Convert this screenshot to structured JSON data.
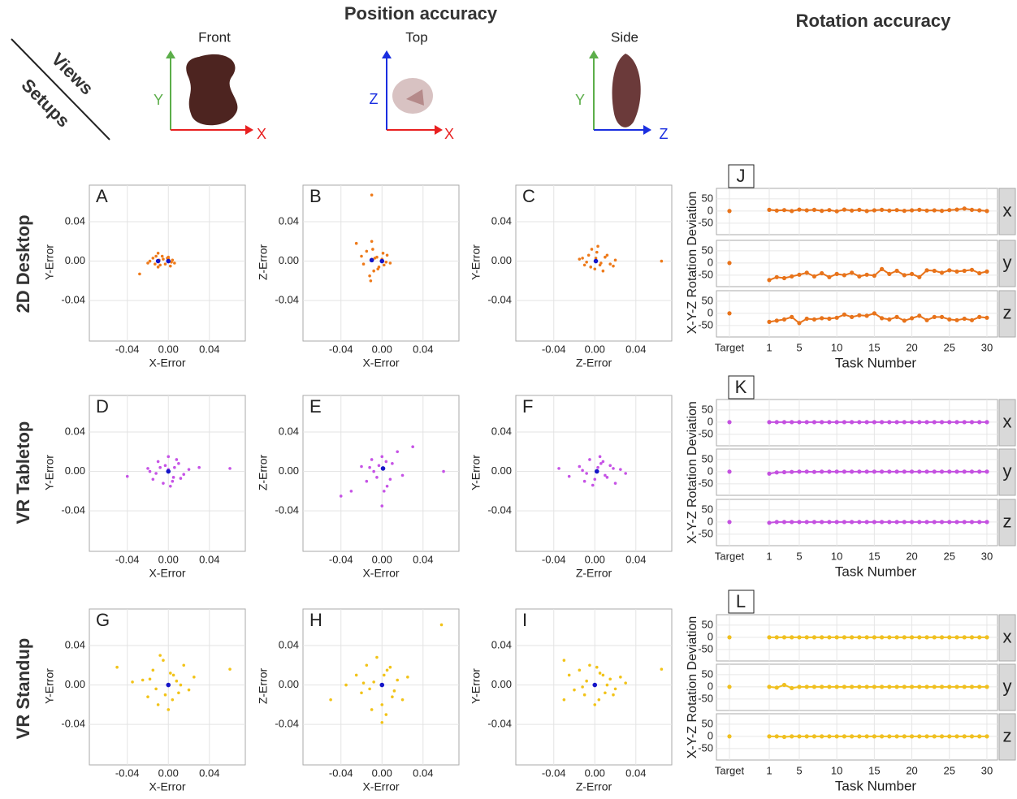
{
  "header": {
    "position_title": "Position accuracy",
    "rotation_title": "Rotation accuracy",
    "views": "Views",
    "setups": "Setups",
    "view_names": [
      "Front",
      "Top",
      "Side"
    ],
    "view_axes": [
      [
        "Y",
        "X"
      ],
      [
        "Z",
        "X"
      ],
      [
        "Y",
        "Z"
      ]
    ],
    "rows": [
      "2D Desktop",
      "VR Tabletop",
      "VR Standup"
    ]
  },
  "chart_data": [
    {
      "type": "scatter",
      "panel": "A",
      "xlabel": "X-Error",
      "ylabel": "Y-Error",
      "color": "#ee7a1a",
      "marker_color": "#1515c8",
      "xlim": [
        -0.077,
        0.075
      ],
      "ylim": [
        -0.081,
        0.077
      ],
      "xticks": [
        -0.04,
        {
          "value": 0,
          "label": "0.00"
        },
        0.04
      ],
      "yticks": [
        -0.04,
        {
          "value": 0,
          "label": "0.00"
        },
        0.04
      ],
      "x": [
        -0.028,
        -0.02,
        -0.015,
        -0.012,
        -0.01,
        -0.008,
        -0.005,
        -0.003,
        0,
        0.002,
        0.004,
        0.006,
        -0.018,
        -0.01,
        -0.006,
        0,
        0.003,
        -0.013,
        -0.009,
        -0.001
      ],
      "y": [
        -0.013,
        -0.002,
        0.003,
        0.005,
        0.008,
        -0.004,
        0.002,
        -0.003,
        0.004,
        -0.005,
        0.001,
        -0.002,
        0,
        -0.006,
        0.005,
        0.002,
        -0.001,
        -0.003,
        0.001,
        0.003
      ],
      "marker_x": [
        -0.01,
        0
      ],
      "marker_y": [
        0,
        0
      ]
    },
    {
      "type": "scatter",
      "panel": "B",
      "xlabel": "X-Error",
      "ylabel": "Z-Error",
      "color": "#ee7a1a",
      "marker_color": "#1515c8",
      "xlim": [
        -0.077,
        0.075
      ],
      "ylim": [
        -0.081,
        0.077
      ],
      "xticks": [
        -0.04,
        {
          "value": 0,
          "label": "0.00"
        },
        0.04
      ],
      "yticks": [
        -0.04,
        {
          "value": 0,
          "label": "0.00"
        },
        0.04
      ],
      "x": [
        -0.01,
        -0.025,
        -0.02,
        -0.015,
        -0.012,
        -0.01,
        -0.008,
        -0.005,
        -0.003,
        0,
        0.002,
        0.005,
        0.008,
        -0.018,
        -0.009,
        -0.004,
        0.001,
        -0.011,
        -0.007,
        0.004
      ],
      "y": [
        0.067,
        0.018,
        0.005,
        0.01,
        -0.015,
        0.02,
        -0.01,
        0.004,
        -0.006,
        0.002,
        -0.004,
        0.006,
        -0.002,
        -0.003,
        0.012,
        -0.008,
        0.008,
        -0.02,
        0.003,
        -0.001
      ],
      "marker_x": [
        -0.01,
        0
      ],
      "marker_y": [
        0.001,
        0
      ]
    },
    {
      "type": "scatter",
      "panel": "C",
      "xlabel": "Z-Error",
      "ylabel": "Y-Error",
      "color": "#ee7a1a",
      "marker_color": "#1515c8",
      "xlim": [
        -0.077,
        0.075
      ],
      "ylim": [
        -0.081,
        0.077
      ],
      "xticks": [
        -0.04,
        {
          "value": 0,
          "label": "0.00"
        },
        0.04
      ],
      "yticks": [
        -0.04,
        {
          "value": 0,
          "label": "0.00"
        },
        0.04
      ],
      "x": [
        0.065,
        -0.015,
        -0.01,
        -0.006,
        -0.003,
        0,
        0.003,
        0.006,
        0.01,
        0.015,
        0.02,
        -0.012,
        -0.004,
        0.002,
        0.008,
        0.012,
        0.005,
        -0.008,
        0.001,
        0.018
      ],
      "y": [
        0,
        0.002,
        -0.004,
        0.006,
        0.012,
        -0.008,
        0.015,
        -0.002,
        0.004,
        -0.003,
        0.001,
        0.003,
        -0.006,
        0.009,
        -0.01,
        0.006,
        -0.004,
        -0.001,
        0.003,
        -0.005
      ],
      "marker_x": [
        0.001
      ],
      "marker_y": [
        0
      ]
    },
    {
      "type": "scatter",
      "panel": "D",
      "xlabel": "X-Error",
      "ylabel": "Y-Error",
      "color": "#c653e6",
      "marker_color": "#1515c8",
      "xlim": [
        -0.077,
        0.075
      ],
      "ylim": [
        -0.081,
        0.077
      ],
      "xticks": [
        -0.04,
        {
          "value": 0,
          "label": "0.00"
        },
        0.04
      ],
      "yticks": [
        -0.04,
        {
          "value": 0,
          "label": "0.00"
        },
        0.04
      ],
      "x": [
        -0.04,
        0.06,
        0.03,
        -0.02,
        -0.015,
        -0.01,
        -0.005,
        0,
        0.005,
        0.01,
        0.015,
        0.02,
        -0.008,
        0.004,
        -0.012,
        0.008,
        0.002,
        -0.003,
        0.012,
        -0.018,
        0,
        0.006
      ],
      "y": [
        -0.005,
        0.003,
        0.004,
        0.003,
        -0.008,
        0.01,
        -0.012,
        0.015,
        -0.006,
        0.008,
        -0.003,
        0.002,
        0.004,
        -0.01,
        -0.002,
        0.012,
        -0.015,
        0.006,
        -0.007,
        0,
        0.002,
        0.004
      ],
      "marker_x": [
        0
      ],
      "marker_y": [
        0
      ]
    },
    {
      "type": "scatter",
      "panel": "E",
      "xlabel": "X-Error",
      "ylabel": "Z-Error",
      "color": "#c653e6",
      "marker_color": "#1515c8",
      "xlim": [
        -0.077,
        0.075
      ],
      "ylim": [
        -0.081,
        0.077
      ],
      "xticks": [
        -0.04,
        {
          "value": 0,
          "label": "0.00"
        },
        0.04
      ],
      "yticks": [
        -0.04,
        {
          "value": 0,
          "label": "0.00"
        },
        0.04
      ],
      "x": [
        -0.04,
        0.03,
        0.06,
        -0.03,
        0,
        -0.02,
        -0.015,
        -0.01,
        -0.005,
        0,
        0.005,
        0.01,
        0.015,
        0.02,
        -0.008,
        0.004,
        0.008,
        -0.012,
        0.002,
        -0.003
      ],
      "y": [
        -0.025,
        0.025,
        0,
        -0.02,
        -0.035,
        0.005,
        -0.01,
        0.012,
        -0.006,
        0.015,
        -0.015,
        0.008,
        0.02,
        -0.004,
        0,
        0.01,
        -0.008,
        0.004,
        -0.02,
        0.006
      ],
      "marker_x": [
        0.001
      ],
      "marker_y": [
        0.003
      ]
    },
    {
      "type": "scatter",
      "panel": "F",
      "xlabel": "Z-Error",
      "ylabel": "Y-Error",
      "color": "#c653e6",
      "marker_color": "#1515c8",
      "xlim": [
        -0.077,
        0.075
      ],
      "ylim": [
        -0.081,
        0.077
      ],
      "xticks": [
        -0.04,
        {
          "value": 0,
          "label": "0.00"
        },
        0.04
      ],
      "yticks": [
        -0.04,
        {
          "value": 0,
          "label": "0.00"
        },
        0.04
      ],
      "x": [
        -0.035,
        -0.025,
        0.03,
        -0.015,
        -0.01,
        -0.005,
        0,
        0.005,
        0.01,
        0.015,
        0.02,
        0.025,
        0.003,
        -0.008,
        0.008,
        0.012,
        -0.002,
        0.006,
        0.018,
        -0.012
      ],
      "y": [
        0.003,
        -0.005,
        -0.002,
        0.005,
        -0.01,
        0.012,
        -0.008,
        0.015,
        -0.004,
        0.006,
        -0.012,
        0.002,
        0.004,
        -0.002,
        0.01,
        -0.006,
        -0.014,
        0.008,
        0.003,
        0.001
      ],
      "marker_x": [
        0.002
      ],
      "marker_y": [
        0
      ]
    },
    {
      "type": "scatter",
      "panel": "G",
      "xlabel": "X-Error",
      "ylabel": "Y-Error",
      "color": "#f2c318",
      "marker_color": "#1515c8",
      "xlim": [
        -0.077,
        0.075
      ],
      "ylim": [
        -0.081,
        0.077
      ],
      "xticks": [
        -0.04,
        {
          "value": 0,
          "label": "0.00"
        },
        0.04
      ],
      "yticks": [
        -0.04,
        {
          "value": 0,
          "label": "0.00"
        },
        0.04
      ],
      "x": [
        -0.05,
        0.06,
        -0.035,
        -0.025,
        -0.02,
        -0.015,
        -0.01,
        -0.005,
        0,
        0.005,
        0.01,
        0.015,
        0.02,
        0.025,
        -0.008,
        0.004,
        0.008,
        -0.012,
        0.002,
        -0.003,
        0.012,
        -0.018
      ],
      "y": [
        0.018,
        0.016,
        0.003,
        0.005,
        -0.012,
        0.015,
        -0.02,
        0.025,
        -0.025,
        0.01,
        -0.008,
        0.02,
        -0.005,
        0.008,
        0.03,
        -0.015,
        0.004,
        -0.004,
        0.012,
        -0.01,
        0,
        0.006
      ],
      "marker_x": [
        0
      ],
      "marker_y": [
        0
      ]
    },
    {
      "type": "scatter",
      "panel": "H",
      "xlabel": "X-Error",
      "ylabel": "Z-Error",
      "color": "#f2c318",
      "marker_color": "#1515c8",
      "xlim": [
        -0.077,
        0.075
      ],
      "ylim": [
        -0.081,
        0.077
      ],
      "xticks": [
        -0.04,
        {
          "value": 0,
          "label": "0.00"
        },
        0.04
      ],
      "yticks": [
        -0.04,
        {
          "value": 0,
          "label": "0.00"
        },
        0.04
      ],
      "x": [
        0.058,
        -0.05,
        -0.035,
        0,
        -0.025,
        -0.02,
        -0.015,
        -0.01,
        -0.005,
        0,
        0.005,
        0.01,
        0.015,
        0.02,
        0.025,
        -0.008,
        0.004,
        0.008,
        -0.012,
        0.002,
        0.012,
        -0.018
      ],
      "y": [
        0.061,
        -0.015,
        0,
        -0.038,
        0.01,
        -0.008,
        0.02,
        -0.025,
        0.028,
        -0.02,
        0.015,
        -0.012,
        0.005,
        -0.015,
        0.008,
        0.003,
        -0.03,
        0.018,
        -0.004,
        0.01,
        -0.006,
        0.002
      ],
      "marker_x": [
        0
      ],
      "marker_y": [
        0
      ]
    },
    {
      "type": "scatter",
      "panel": "I",
      "xlabel": "Z-Error",
      "ylabel": "Y-Error",
      "color": "#f2c318",
      "marker_color": "#1515c8",
      "xlim": [
        -0.077,
        0.075
      ],
      "ylim": [
        -0.081,
        0.077
      ],
      "xticks": [
        -0.04,
        {
          "value": 0,
          "label": "0.00"
        },
        0.04
      ],
      "yticks": [
        -0.04,
        {
          "value": 0,
          "label": "0.00"
        },
        0.04
      ],
      "x": [
        0.065,
        -0.03,
        -0.03,
        -0.025,
        -0.02,
        -0.015,
        -0.01,
        -0.005,
        0,
        0.005,
        0.01,
        0.015,
        0.02,
        0.025,
        0.03,
        -0.008,
        0.004,
        0.008,
        -0.012,
        0.012,
        0.018,
        0.002
      ],
      "y": [
        0.016,
        0.025,
        -0.015,
        0.01,
        -0.005,
        0.015,
        -0.01,
        0.02,
        -0.02,
        0.012,
        -0.008,
        0.006,
        -0.004,
        0.008,
        0.002,
        0.004,
        -0.015,
        0.01,
        -0.002,
        0,
        -0.01,
        0.018
      ],
      "marker_x": [
        0
      ],
      "marker_y": [
        0
      ]
    },
    {
      "type": "line",
      "panel": "J",
      "xlabel": "Task Number",
      "ylabel": "X-Y-Z Rotation Deviation",
      "color": "#e8731a",
      "categories": [
        "Target",
        null,
        "1",
        null,
        null,
        null,
        "5",
        null,
        null,
        null,
        null,
        "10",
        null,
        null,
        null,
        null,
        "15",
        null,
        null,
        null,
        null,
        "20",
        null,
        null,
        null,
        null,
        "25",
        null,
        null,
        null,
        null,
        "30"
      ],
      "ylim": [
        -97,
        93
      ],
      "yticks": [
        -50,
        0,
        50
      ],
      "series": [
        {
          "name": "x",
          "values": [
            0,
            null,
            5,
            2,
            4,
            0,
            6,
            3,
            5,
            1,
            4,
            -1,
            6,
            2,
            5,
            0,
            3,
            5,
            2,
            4,
            1,
            3,
            5,
            2,
            3,
            1,
            4,
            6,
            10,
            5,
            3,
            0
          ]
        },
        {
          "name": "y",
          "values": [
            0,
            null,
            -70,
            -58,
            -62,
            -55,
            -48,
            -40,
            -55,
            -42,
            -58,
            -45,
            -50,
            -40,
            -55,
            -48,
            -52,
            -25,
            -45,
            -32,
            -50,
            -45,
            -58,
            -30,
            -32,
            -40,
            -30,
            -35,
            -32,
            -28,
            -42,
            -35
          ]
        },
        {
          "name": "z",
          "values": [
            0,
            null,
            -35,
            -30,
            -25,
            -15,
            -40,
            -22,
            -25,
            -20,
            -22,
            -18,
            -5,
            -15,
            -8,
            -10,
            0,
            -20,
            -25,
            -15,
            -30,
            -20,
            -10,
            -28,
            -15,
            -15,
            -25,
            -28,
            -22,
            -28,
            -15,
            -18
          ]
        }
      ]
    },
    {
      "type": "line",
      "panel": "K",
      "xlabel": "Task Number",
      "ylabel": "X-Y-Z Rotation Deviation",
      "color": "#c451e0",
      "categories": [
        "Target",
        null,
        "1",
        null,
        null,
        null,
        "5",
        null,
        null,
        null,
        null,
        "10",
        null,
        null,
        null,
        null,
        "15",
        null,
        null,
        null,
        null,
        "20",
        null,
        null,
        null,
        null,
        "25",
        null,
        null,
        null,
        null,
        "30"
      ],
      "ylim": [
        -97,
        93
      ],
      "yticks": [
        -50,
        0,
        50
      ],
      "series": [
        {
          "name": "x",
          "values": [
            0,
            null,
            0,
            0,
            0,
            0,
            0,
            0,
            0,
            0,
            0,
            0,
            0,
            0,
            0,
            0,
            0,
            0,
            0,
            0,
            0,
            0,
            0,
            0,
            0,
            0,
            0,
            0,
            0,
            0,
            0,
            0
          ]
        },
        {
          "name": "y",
          "values": [
            0,
            null,
            -8,
            -3,
            -2,
            -1,
            0,
            0,
            -1,
            0,
            0,
            0,
            0,
            0,
            0,
            0,
            0,
            0,
            0,
            0,
            0,
            0,
            0,
            0,
            0,
            0,
            0,
            0,
            0,
            0,
            0,
            0
          ]
        },
        {
          "name": "z",
          "values": [
            0,
            null,
            -3,
            0,
            0,
            0,
            0,
            0,
            0,
            0,
            0,
            0,
            0,
            0,
            0,
            0,
            0,
            0,
            0,
            0,
            0,
            0,
            0,
            0,
            0,
            0,
            0,
            0,
            0,
            0,
            0,
            0
          ]
        }
      ]
    },
    {
      "type": "line",
      "panel": "L",
      "xlabel": "Task Number",
      "ylabel": "X-Y-Z Rotation Deviation",
      "color": "#f0c020",
      "categories": [
        "Target",
        null,
        "1",
        null,
        null,
        null,
        "5",
        null,
        null,
        null,
        null,
        "10",
        null,
        null,
        null,
        null,
        "15",
        null,
        null,
        null,
        null,
        "20",
        null,
        null,
        null,
        null,
        "25",
        null,
        null,
        null,
        null,
        "30"
      ],
      "ylim": [
        -97,
        93
      ],
      "yticks": [
        -50,
        0,
        50
      ],
      "series": [
        {
          "name": "x",
          "values": [
            0,
            null,
            0,
            0,
            0,
            0,
            0,
            0,
            0,
            0,
            0,
            0,
            0,
            0,
            0,
            0,
            0,
            0,
            0,
            0,
            0,
            0,
            0,
            0,
            0,
            0,
            0,
            0,
            0,
            0,
            0,
            0
          ]
        },
        {
          "name": "y",
          "values": [
            0,
            null,
            0,
            -3,
            8,
            -5,
            0,
            0,
            0,
            0,
            0,
            0,
            0,
            0,
            0,
            0,
            0,
            0,
            0,
            0,
            0,
            0,
            0,
            0,
            0,
            0,
            0,
            0,
            0,
            0,
            0,
            0
          ]
        },
        {
          "name": "z",
          "values": [
            0,
            null,
            0,
            0,
            -2,
            0,
            0,
            0,
            0,
            0,
            0,
            0,
            0,
            0,
            0,
            0,
            0,
            0,
            0,
            0,
            0,
            0,
            0,
            0,
            0,
            0,
            0,
            0,
            0,
            0,
            0,
            0
          ]
        }
      ]
    }
  ]
}
